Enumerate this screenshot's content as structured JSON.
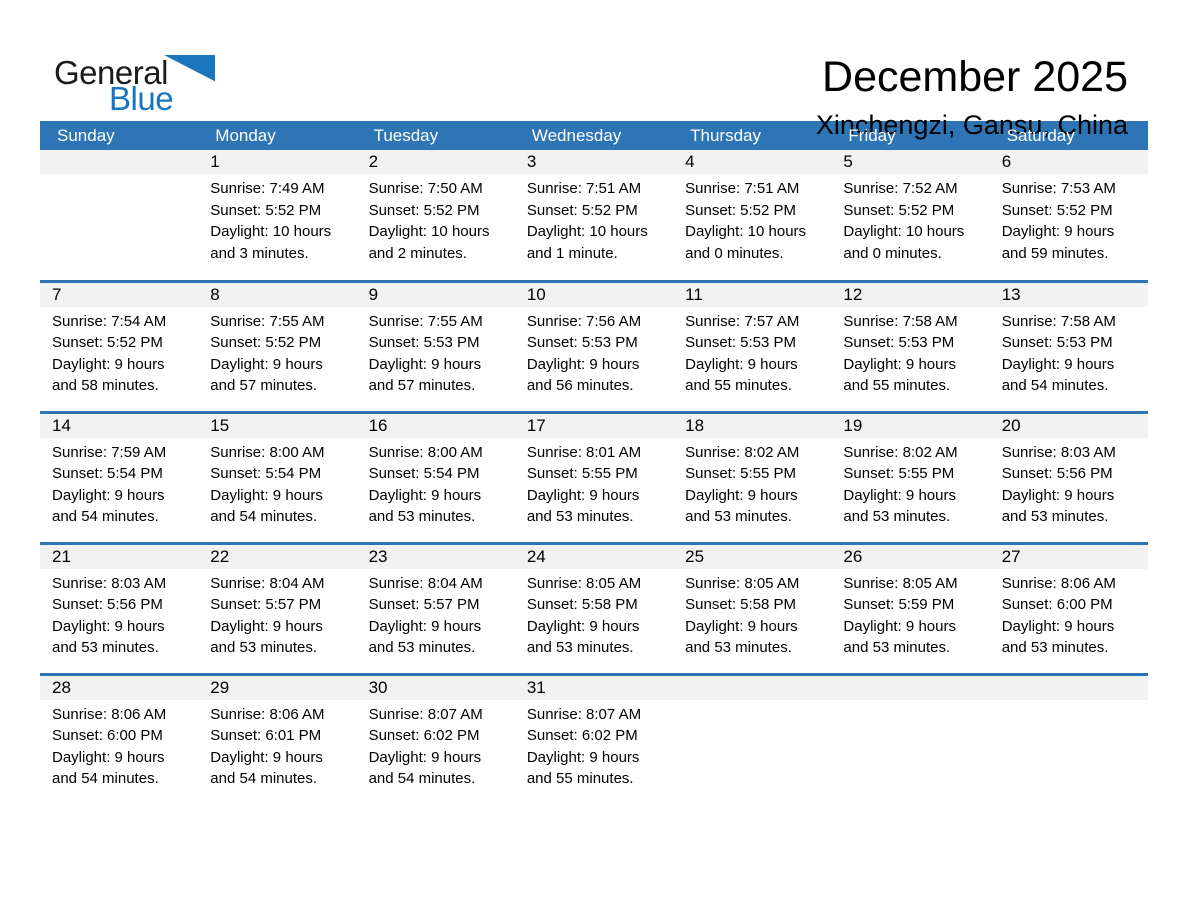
{
  "logo": {
    "word_dark": "General",
    "word_blue": "Blue"
  },
  "header": {
    "title": "December 2025",
    "subtitle": "Xinchengzi, Gansu, China"
  },
  "colors": {
    "accent_blue": "#2E75B6",
    "logo_blue": "#1B75BC",
    "band_gray": "#F2F2F2"
  },
  "weekdays": [
    "Sunday",
    "Monday",
    "Tuesday",
    "Wednesday",
    "Thursday",
    "Friday",
    "Saturday"
  ],
  "weeks": [
    [
      null,
      {
        "day": "1",
        "sunrise": "Sunrise: 7:49 AM",
        "sunset": "Sunset: 5:52 PM",
        "daylight": "Daylight: 10 hours and 3 minutes."
      },
      {
        "day": "2",
        "sunrise": "Sunrise: 7:50 AM",
        "sunset": "Sunset: 5:52 PM",
        "daylight": "Daylight: 10 hours and 2 minutes."
      },
      {
        "day": "3",
        "sunrise": "Sunrise: 7:51 AM",
        "sunset": "Sunset: 5:52 PM",
        "daylight": "Daylight: 10 hours and 1 minute."
      },
      {
        "day": "4",
        "sunrise": "Sunrise: 7:51 AM",
        "sunset": "Sunset: 5:52 PM",
        "daylight": "Daylight: 10 hours and 0 minutes."
      },
      {
        "day": "5",
        "sunrise": "Sunrise: 7:52 AM",
        "sunset": "Sunset: 5:52 PM",
        "daylight": "Daylight: 10 hours and 0 minutes."
      },
      {
        "day": "6",
        "sunrise": "Sunrise: 7:53 AM",
        "sunset": "Sunset: 5:52 PM",
        "daylight": "Daylight: 9 hours and 59 minutes."
      }
    ],
    [
      {
        "day": "7",
        "sunrise": "Sunrise: 7:54 AM",
        "sunset": "Sunset: 5:52 PM",
        "daylight": "Daylight: 9 hours and 58 minutes."
      },
      {
        "day": "8",
        "sunrise": "Sunrise: 7:55 AM",
        "sunset": "Sunset: 5:52 PM",
        "daylight": "Daylight: 9 hours and 57 minutes."
      },
      {
        "day": "9",
        "sunrise": "Sunrise: 7:55 AM",
        "sunset": "Sunset: 5:53 PM",
        "daylight": "Daylight: 9 hours and 57 minutes."
      },
      {
        "day": "10",
        "sunrise": "Sunrise: 7:56 AM",
        "sunset": "Sunset: 5:53 PM",
        "daylight": "Daylight: 9 hours and 56 minutes."
      },
      {
        "day": "11",
        "sunrise": "Sunrise: 7:57 AM",
        "sunset": "Sunset: 5:53 PM",
        "daylight": "Daylight: 9 hours and 55 minutes."
      },
      {
        "day": "12",
        "sunrise": "Sunrise: 7:58 AM",
        "sunset": "Sunset: 5:53 PM",
        "daylight": "Daylight: 9 hours and 55 minutes."
      },
      {
        "day": "13",
        "sunrise": "Sunrise: 7:58 AM",
        "sunset": "Sunset: 5:53 PM",
        "daylight": "Daylight: 9 hours and 54 minutes."
      }
    ],
    [
      {
        "day": "14",
        "sunrise": "Sunrise: 7:59 AM",
        "sunset": "Sunset: 5:54 PM",
        "daylight": "Daylight: 9 hours and 54 minutes."
      },
      {
        "day": "15",
        "sunrise": "Sunrise: 8:00 AM",
        "sunset": "Sunset: 5:54 PM",
        "daylight": "Daylight: 9 hours and 54 minutes."
      },
      {
        "day": "16",
        "sunrise": "Sunrise: 8:00 AM",
        "sunset": "Sunset: 5:54 PM",
        "daylight": "Daylight: 9 hours and 53 minutes."
      },
      {
        "day": "17",
        "sunrise": "Sunrise: 8:01 AM",
        "sunset": "Sunset: 5:55 PM",
        "daylight": "Daylight: 9 hours and 53 minutes."
      },
      {
        "day": "18",
        "sunrise": "Sunrise: 8:02 AM",
        "sunset": "Sunset: 5:55 PM",
        "daylight": "Daylight: 9 hours and 53 minutes."
      },
      {
        "day": "19",
        "sunrise": "Sunrise: 8:02 AM",
        "sunset": "Sunset: 5:55 PM",
        "daylight": "Daylight: 9 hours and 53 minutes."
      },
      {
        "day": "20",
        "sunrise": "Sunrise: 8:03 AM",
        "sunset": "Sunset: 5:56 PM",
        "daylight": "Daylight: 9 hours and 53 minutes."
      }
    ],
    [
      {
        "day": "21",
        "sunrise": "Sunrise: 8:03 AM",
        "sunset": "Sunset: 5:56 PM",
        "daylight": "Daylight: 9 hours and 53 minutes."
      },
      {
        "day": "22",
        "sunrise": "Sunrise: 8:04 AM",
        "sunset": "Sunset: 5:57 PM",
        "daylight": "Daylight: 9 hours and 53 minutes."
      },
      {
        "day": "23",
        "sunrise": "Sunrise: 8:04 AM",
        "sunset": "Sunset: 5:57 PM",
        "daylight": "Daylight: 9 hours and 53 minutes."
      },
      {
        "day": "24",
        "sunrise": "Sunrise: 8:05 AM",
        "sunset": "Sunset: 5:58 PM",
        "daylight": "Daylight: 9 hours and 53 minutes."
      },
      {
        "day": "25",
        "sunrise": "Sunrise: 8:05 AM",
        "sunset": "Sunset: 5:58 PM",
        "daylight": "Daylight: 9 hours and 53 minutes."
      },
      {
        "day": "26",
        "sunrise": "Sunrise: 8:05 AM",
        "sunset": "Sunset: 5:59 PM",
        "daylight": "Daylight: 9 hours and 53 minutes."
      },
      {
        "day": "27",
        "sunrise": "Sunrise: 8:06 AM",
        "sunset": "Sunset: 6:00 PM",
        "daylight": "Daylight: 9 hours and 53 minutes."
      }
    ],
    [
      {
        "day": "28",
        "sunrise": "Sunrise: 8:06 AM",
        "sunset": "Sunset: 6:00 PM",
        "daylight": "Daylight: 9 hours and 54 minutes."
      },
      {
        "day": "29",
        "sunrise": "Sunrise: 8:06 AM",
        "sunset": "Sunset: 6:01 PM",
        "daylight": "Daylight: 9 hours and 54 minutes."
      },
      {
        "day": "30",
        "sunrise": "Sunrise: 8:07 AM",
        "sunset": "Sunset: 6:02 PM",
        "daylight": "Daylight: 9 hours and 54 minutes."
      },
      {
        "day": "31",
        "sunrise": "Sunrise: 8:07 AM",
        "sunset": "Sunset: 6:02 PM",
        "daylight": "Daylight: 9 hours and 55 minutes."
      },
      null,
      null,
      null
    ]
  ]
}
